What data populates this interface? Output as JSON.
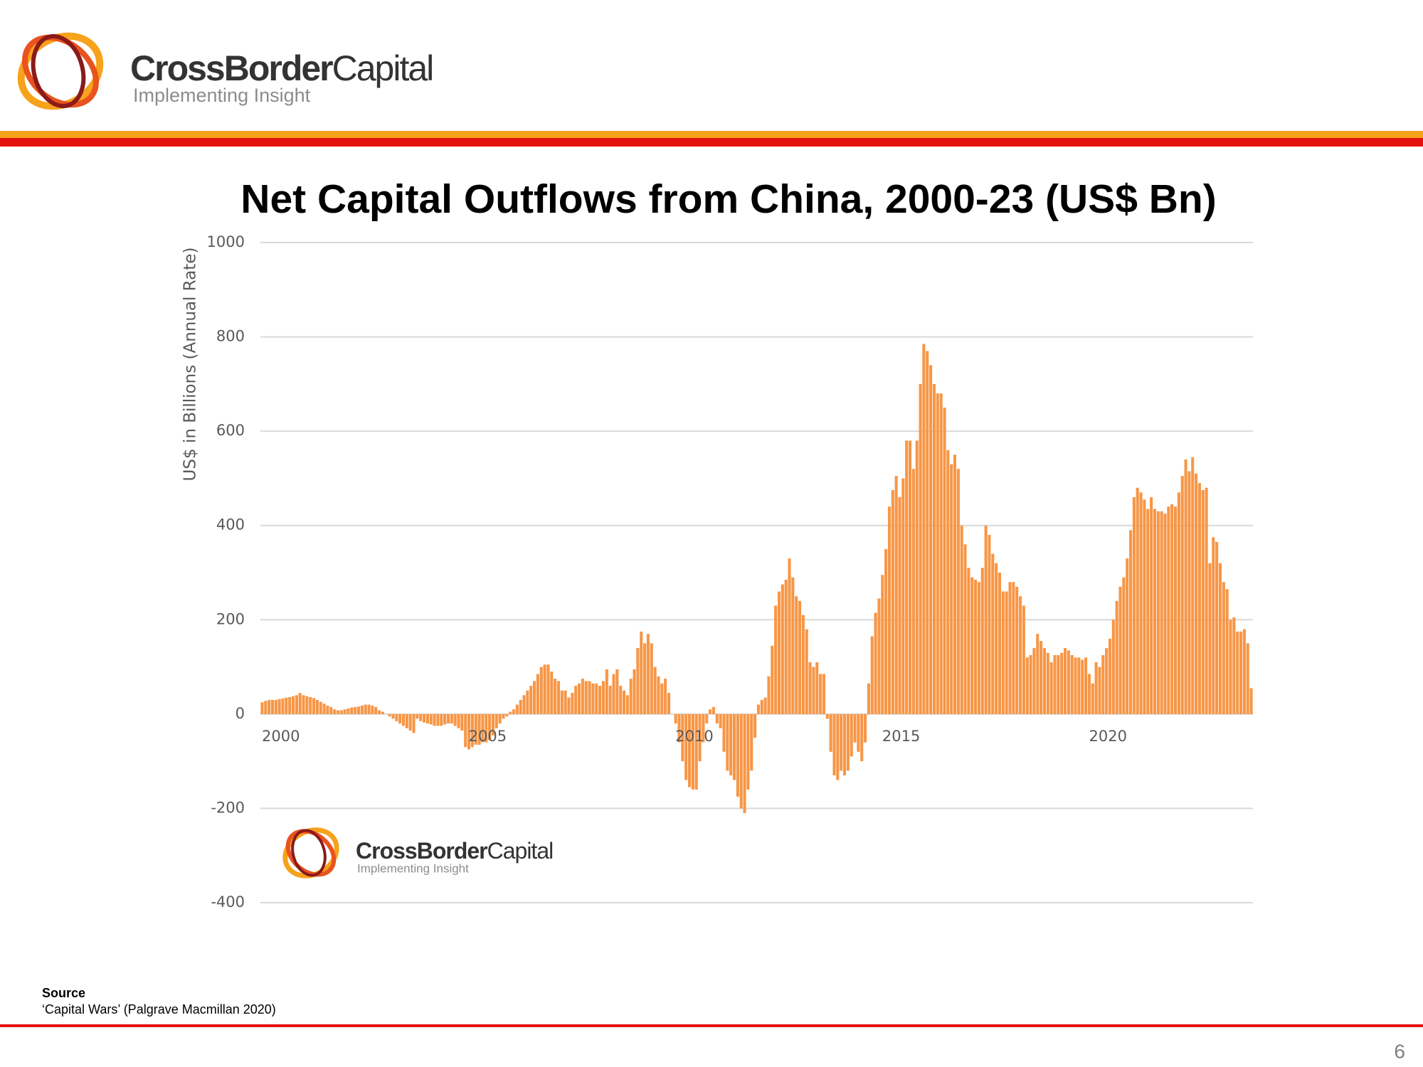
{
  "header": {
    "brand_bold": "CrossBorder",
    "brand_light": "Capital",
    "tagline": "Implementing Insight"
  },
  "chart_data": {
    "type": "bar",
    "title": "Net Capital Outflows from China, 2000-23 (US$ Bn)",
    "y_label": "US$ in Billions (Annual Rate)",
    "color": "#f79646",
    "xlim": [
      2000,
      2024
    ],
    "xticks": [
      2000,
      2005,
      2010,
      2015,
      2020
    ],
    "ylim": [
      -400,
      1000
    ],
    "yticks": [
      -400,
      -200,
      0,
      200,
      400,
      600,
      800,
      1000
    ],
    "grid": true,
    "values": [
      25,
      28,
      30,
      30,
      30,
      32,
      33,
      35,
      36,
      38,
      40,
      45,
      40,
      38,
      36,
      34,
      30,
      26,
      22,
      18,
      15,
      10,
      8,
      8,
      10,
      12,
      14,
      15,
      16,
      18,
      20,
      20,
      18,
      15,
      8,
      5,
      0,
      -5,
      -10,
      -15,
      -20,
      -25,
      -30,
      -35,
      -40,
      -10,
      -15,
      -18,
      -20,
      -22,
      -25,
      -25,
      -25,
      -22,
      -20,
      -20,
      -25,
      -30,
      -35,
      -70,
      -75,
      -70,
      -65,
      -65,
      -60,
      -60,
      -55,
      -45,
      -30,
      -20,
      -10,
      -5,
      5,
      10,
      20,
      30,
      40,
      50,
      60,
      70,
      85,
      100,
      105,
      105,
      90,
      75,
      70,
      50,
      50,
      35,
      45,
      60,
      65,
      75,
      70,
      70,
      65,
      65,
      60,
      70,
      95,
      60,
      85,
      95,
      60,
      50,
      40,
      75,
      95,
      140,
      175,
      150,
      170,
      150,
      100,
      80,
      65,
      75,
      45,
      0,
      -20,
      -60,
      -100,
      -140,
      -155,
      -160,
      -160,
      -100,
      -60,
      -20,
      10,
      15,
      -20,
      -30,
      -80,
      -120,
      -130,
      -140,
      -175,
      -200,
      -210,
      -160,
      -120,
      -50,
      20,
      30,
      35,
      80,
      145,
      230,
      260,
      275,
      285,
      330,
      290,
      250,
      240,
      210,
      180,
      110,
      100,
      110,
      85,
      85,
      -10,
      -80,
      -130,
      -140,
      -120,
      -130,
      -120,
      -90,
      -60,
      -80,
      -100,
      -60,
      65,
      165,
      215,
      245,
      295,
      350,
      440,
      475,
      505,
      460,
      500,
      580,
      580,
      520,
      580,
      700,
      785,
      770,
      740,
      700,
      680,
      680,
      650,
      560,
      530,
      550,
      520,
      400,
      360,
      310,
      290,
      285,
      280,
      310,
      400,
      380,
      340,
      320,
      300,
      260,
      260,
      280,
      280,
      270,
      250,
      230,
      120,
      125,
      140,
      170,
      155,
      140,
      130,
      110,
      125,
      125,
      130,
      140,
      135,
      125,
      120,
      120,
      115,
      120,
      85,
      65,
      110,
      100,
      125,
      140,
      160,
      200,
      240,
      270,
      290,
      330,
      390,
      460,
      480,
      470,
      455,
      435,
      460,
      435,
      430,
      430,
      425,
      440,
      445,
      440,
      470,
      505,
      540,
      515,
      545,
      510,
      490,
      475,
      480,
      320,
      375,
      365,
      320,
      280,
      265,
      200,
      205,
      175,
      175,
      180,
      150,
      55
    ]
  },
  "source": {
    "heading": "Source",
    "text": "‘Capital Wars’ (Palgrave Macmillan 2020)"
  },
  "page_number": 6
}
